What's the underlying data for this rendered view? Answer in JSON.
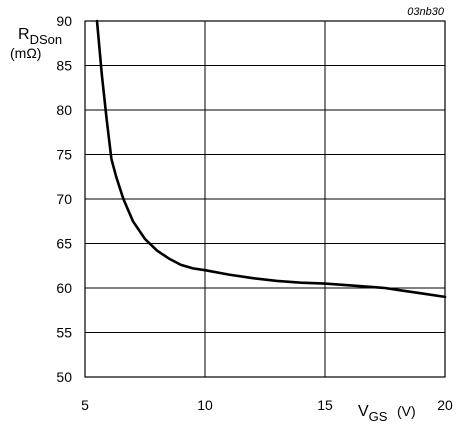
{
  "chart_data": {
    "type": "line",
    "reference": "03nb30",
    "x_axis": {
      "symbol": "V",
      "subscript": "GS",
      "unit": "(V)",
      "range": [
        5,
        20
      ],
      "ticks": [
        5,
        10,
        15,
        20
      ]
    },
    "y_axis": {
      "symbol": "R",
      "subscript": "DSon",
      "unit": "(mΩ)",
      "range": [
        50,
        90
      ],
      "ticks": [
        50,
        55,
        60,
        65,
        70,
        75,
        80,
        85,
        90
      ]
    },
    "grid": true,
    "series": [
      {
        "x": [
          5.5,
          5.7,
          5.9,
          6.1,
          6.3,
          6.6,
          7.0,
          7.5,
          8.0,
          8.5,
          9.0,
          9.5,
          10.0,
          11.0,
          12.0,
          13.0,
          14.0,
          15.0,
          16.0,
          17.0,
          17.5,
          18.0,
          19.0,
          20.0
        ],
        "y": [
          90,
          84,
          79,
          74.5,
          72.5,
          70,
          67.5,
          65.5,
          64.2,
          63.3,
          62.6,
          62.2,
          62.0,
          61.5,
          61.1,
          60.8,
          60.6,
          60.5,
          60.3,
          60.1,
          60.0,
          59.8,
          59.4,
          59.0
        ]
      }
    ]
  }
}
